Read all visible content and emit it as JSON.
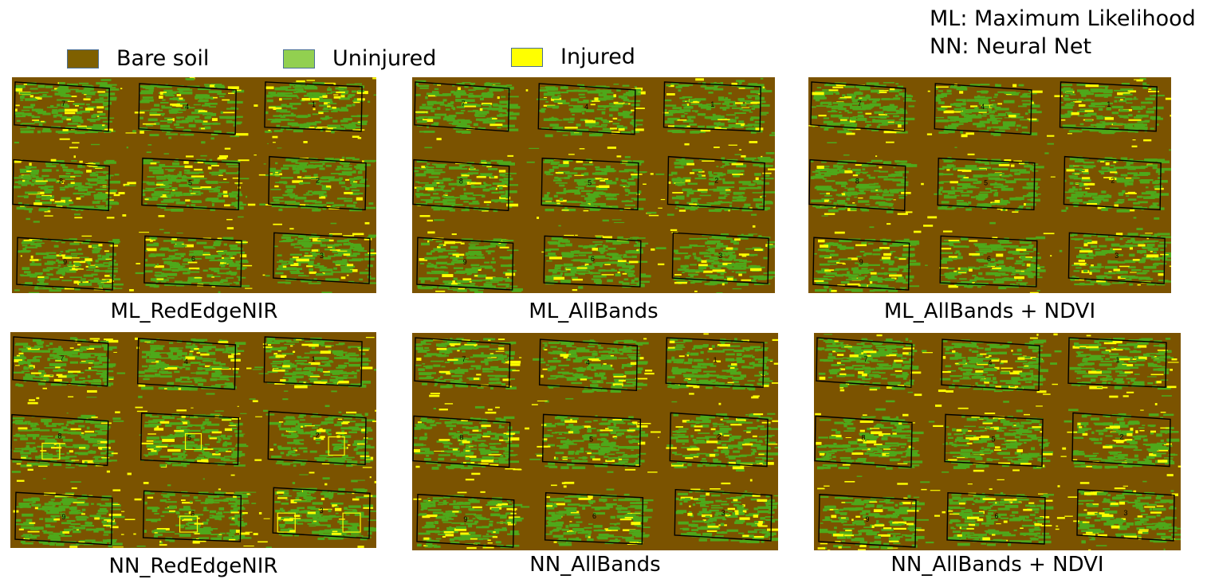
{
  "colors": {
    "bare_soil": "#7b5300",
    "uninjured": "#4ea81a",
    "injured": "#ffff00",
    "legend_uninjured_swatch": "#92d050",
    "legend_bare_soil_swatch": "#7f6000"
  },
  "legend": {
    "bare_soil": "Bare soil",
    "uninjured": "Uninjured",
    "injured": "Injured"
  },
  "abbreviations": {
    "ml": "ML: Maximum Likelihood",
    "nn": "NN: Neural Net"
  },
  "plot_labels": [
    "7",
    "4",
    "1",
    "8",
    "5",
    "2",
    "9",
    "6",
    "3"
  ],
  "panels": [
    {
      "caption": "ML_RedEdgeNIR"
    },
    {
      "caption": "ML_AllBands"
    },
    {
      "caption": "ML_AllBands + NDVI"
    },
    {
      "caption": "NN_RedEdgeNIR"
    },
    {
      "caption": "NN_AllBands"
    },
    {
      "caption": "NN_AllBands + NDVI"
    }
  ]
}
